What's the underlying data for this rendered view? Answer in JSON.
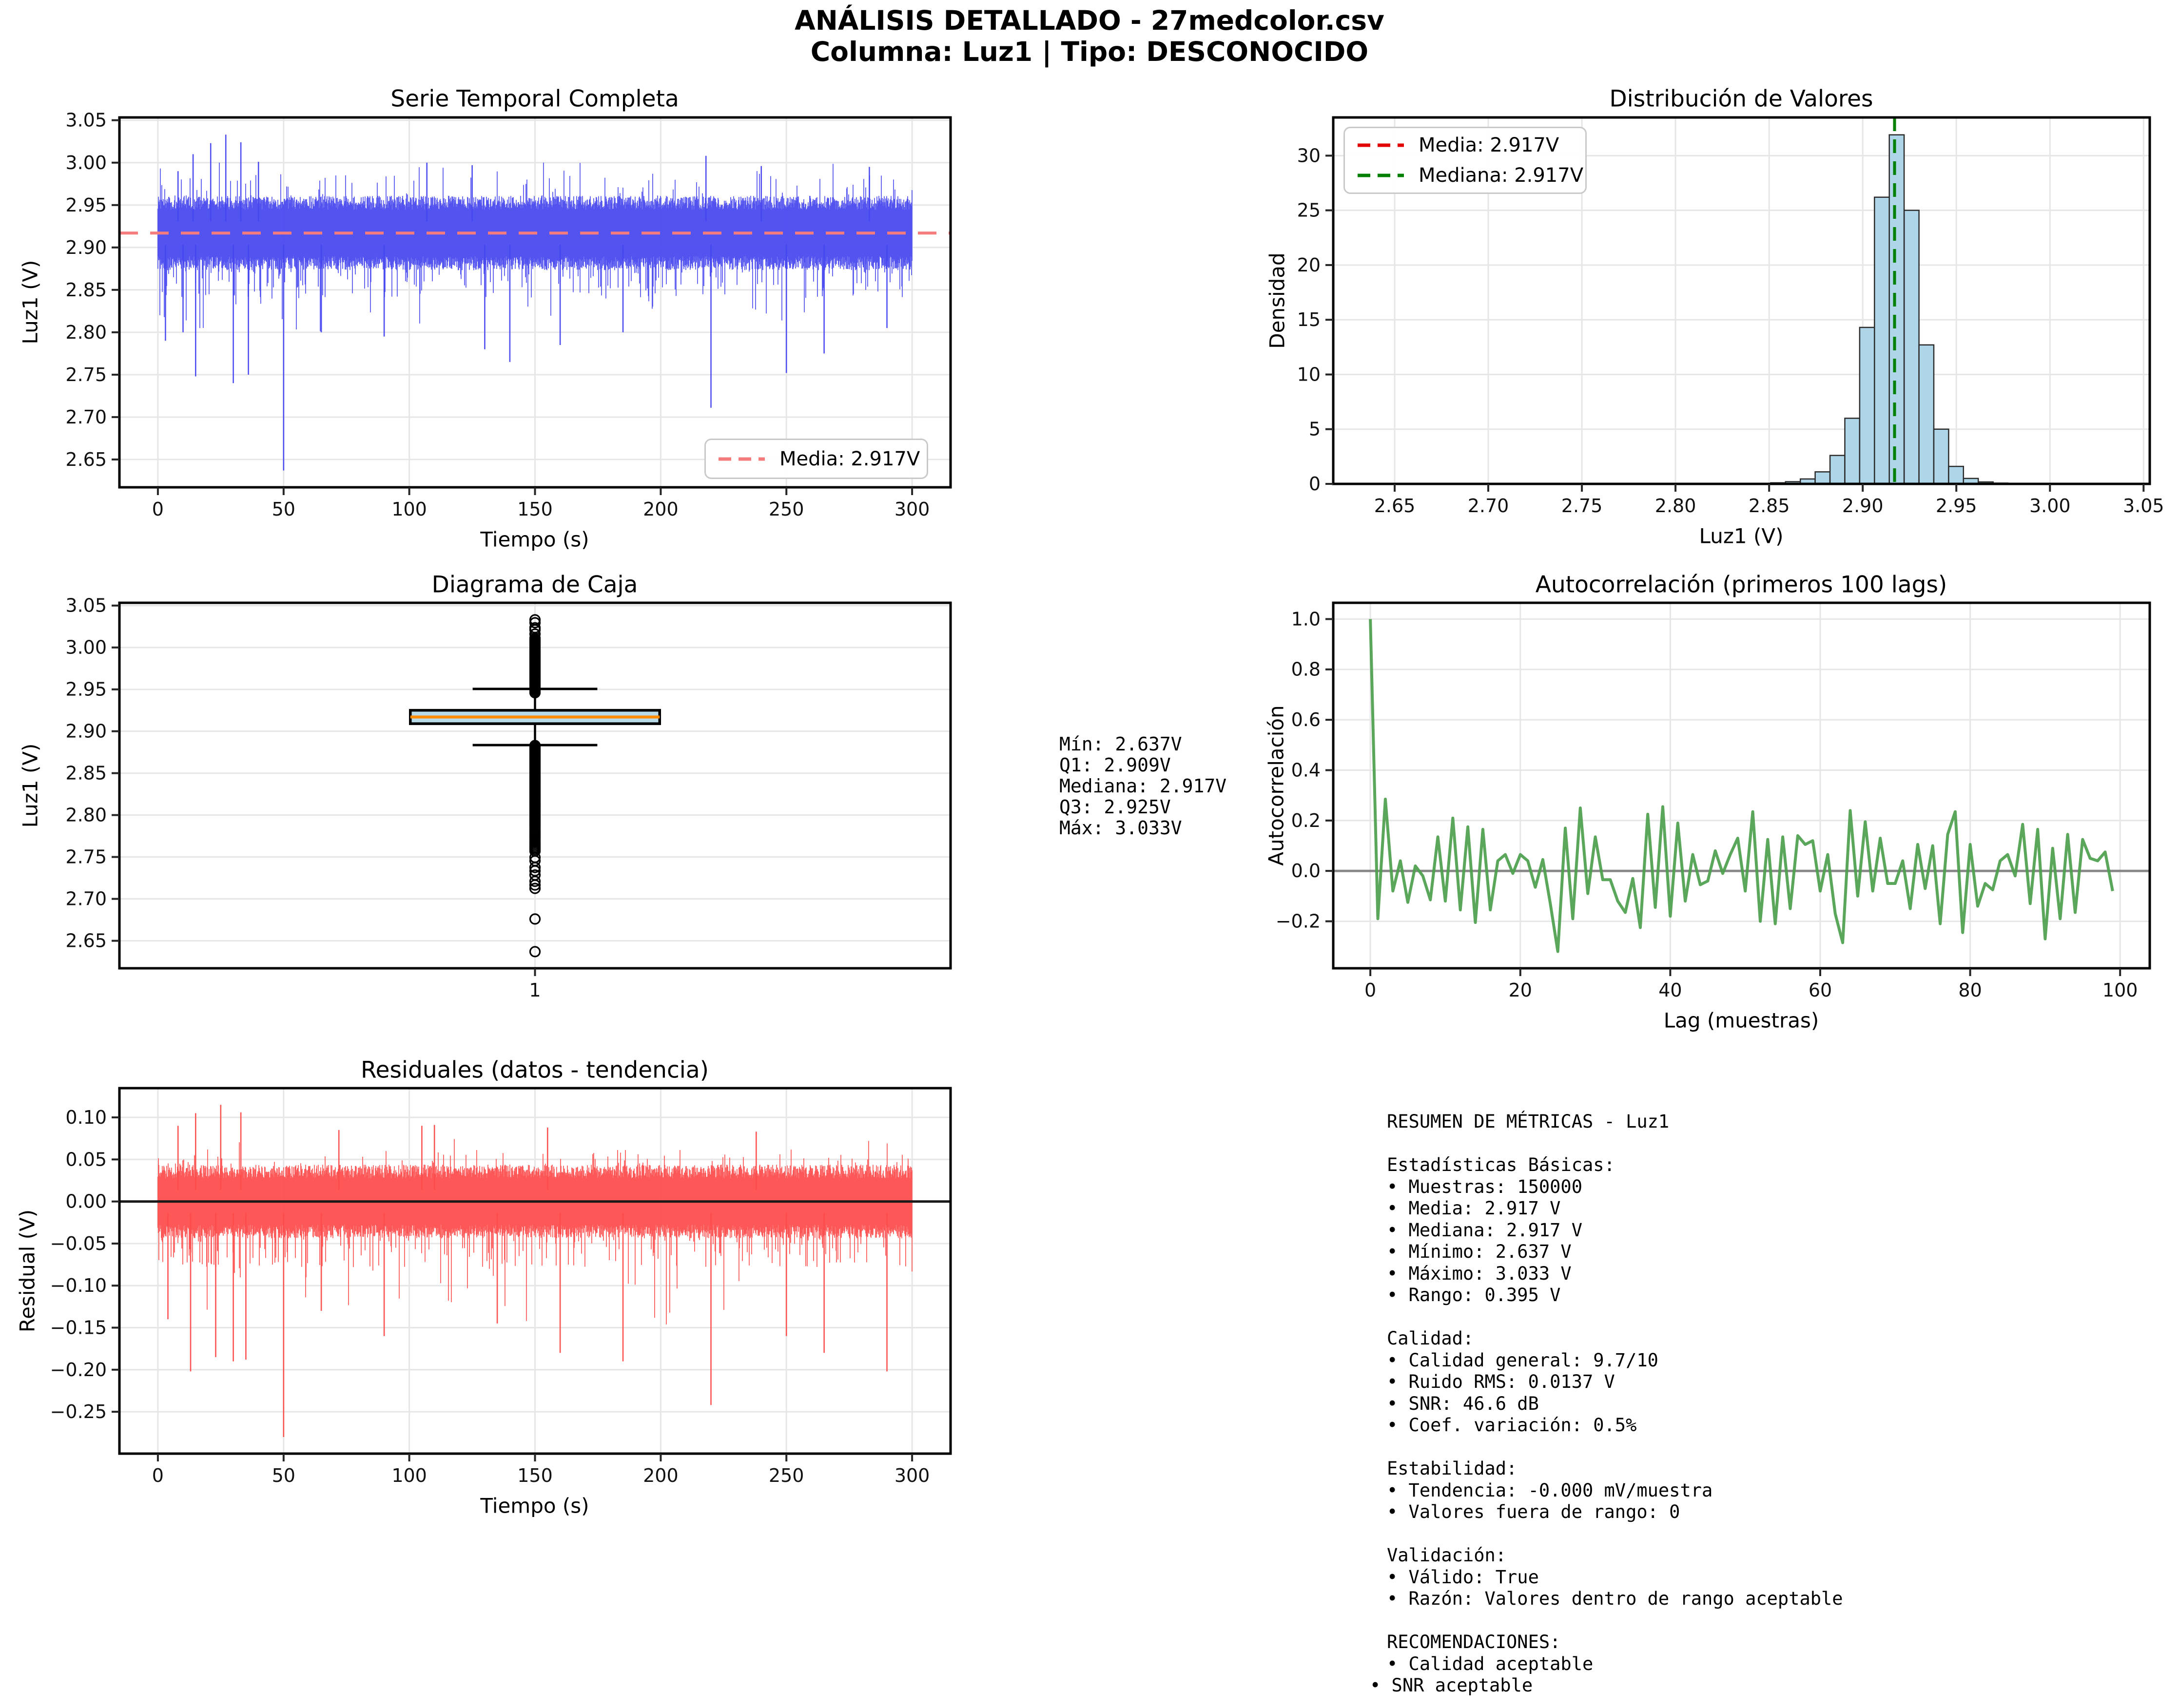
{
  "header": {
    "title_line1": "ANÁLISIS DETALLADO - 27medcolor.csv",
    "title_line2": "Columna: Luz1 | Tipo: DESCONOCIDO"
  },
  "stats_block": {
    "lines": [
      "Mín: 2.637V",
      "Q1: 2.909V",
      "Mediana: 2.917V",
      "Q3: 2.925V",
      "Máx: 3.033V"
    ]
  },
  "metrics_block": {
    "lines": [
      "RESUMEN DE MÉTRICAS - Luz1",
      "",
      "Estadísticas Básicas:",
      "• Muestras: 150000",
      "• Media: 2.917 V",
      "• Mediana: 2.917 V",
      "• Mínimo: 2.637 V",
      "• Máximo: 3.033 V",
      "• Rango: 0.395 V",
      "",
      "Calidad:",
      "• Calidad general: 9.7/10",
      "• Ruido RMS: 0.0137 V",
      "• SNR: 46.6 dB",
      "• Coef. variación: 0.5%",
      "",
      "Estabilidad:",
      "• Tendencia: -0.000 mV/muestra",
      "• Valores fuera de rango: 0",
      "",
      "Validación:",
      "• Válido: True",
      "• Razón: Valores dentro de rango aceptable",
      "",
      "RECOMENDACIONES:",
      "• Calidad aceptable",
      "• SNR aceptable"
    ]
  },
  "chart_data": {
    "timeseries": {
      "type": "line",
      "title": "Serie Temporal Completa",
      "xlabel": "Tiempo (s)",
      "ylabel": "Luz1 (V)",
      "line_color": "#4646ef",
      "xlim": [
        -15.3,
        315.3
      ],
      "ylim": [
        2.6172,
        3.0533
      ],
      "xtick_values": [
        0,
        50,
        100,
        150,
        200,
        250,
        300
      ],
      "xtick_labels": [
        "0",
        "50",
        "100",
        "150",
        "200",
        "250",
        "300"
      ],
      "ytick_values": [
        2.65,
        2.7,
        2.75,
        2.8,
        2.85,
        2.9,
        2.95,
        3.0,
        3.05
      ],
      "ytick_labels": [
        "2.65",
        "2.70",
        "2.75",
        "2.80",
        "2.85",
        "2.90",
        "2.95",
        "3.00",
        "3.05"
      ],
      "mean_line": {
        "value": 2.917,
        "color": "#f47c7c"
      },
      "legend_label": "Media: 2.917V",
      "signal": {
        "seed": 99713,
        "duration": 300,
        "mean": 2.917,
        "std": 0.0137,
        "core": [
          2.0,
          1.2
        ],
        "up_tiers": [
          {
            "rate": 0.006,
            "min": 0.072,
            "max": 0.088
          },
          {
            "rate": 0.05,
            "min": 0.04,
            "max": 0.07
          }
        ],
        "down_tiers": [
          {
            "rate": 0.012,
            "min": 0.078,
            "max": 0.118
          },
          {
            "rate": 0.09,
            "min": 0.045,
            "max": 0.078
          }
        ],
        "early_t": 60,
        "early_boost": 1.8,
        "spikes": [
          [
            50,
            2.637
          ],
          [
            220,
            2.711
          ],
          [
            27,
            3.033
          ],
          [
            21,
            3.023
          ],
          [
            33,
            3.024
          ],
          [
            14,
            3.01
          ],
          [
            40,
            3.001
          ],
          [
            8,
            2.99
          ],
          [
            107,
            3.0
          ],
          [
            125,
            2.997
          ],
          [
            218,
            3.008
          ],
          [
            240,
            2.996
          ],
          [
            283,
            2.995
          ],
          [
            3,
            2.79
          ],
          [
            10,
            2.8
          ],
          [
            15,
            2.748
          ],
          [
            30,
            2.74
          ],
          [
            36,
            2.75
          ],
          [
            65,
            2.8
          ],
          [
            90,
            2.795
          ],
          [
            130,
            2.78
          ],
          [
            140,
            2.765
          ],
          [
            160,
            2.785
          ],
          [
            185,
            2.8
          ],
          [
            250,
            2.752
          ],
          [
            265,
            2.775
          ],
          [
            290,
            2.805
          ]
        ]
      }
    },
    "histogram": {
      "type": "bar",
      "title": "Distribución de Valores",
      "xlabel": "Luz1 (V)",
      "ylabel": "Densidad",
      "bar_fill": "#aed6e8",
      "bar_edge": "#2b2b2b",
      "xlim": [
        2.6172,
        3.0533
      ],
      "ylim": [
        0,
        33.49
      ],
      "xtick_values": [
        2.65,
        2.7,
        2.75,
        2.8,
        2.85,
        2.9,
        2.95,
        3.0,
        3.05
      ],
      "xtick_labels": [
        "2.65",
        "2.70",
        "2.75",
        "2.80",
        "2.85",
        "2.90",
        "2.95",
        "3.00",
        "3.05"
      ],
      "ytick_values": [
        0,
        5,
        10,
        15,
        20,
        25,
        30
      ],
      "ytick_labels": [
        "0",
        "5",
        "10",
        "15",
        "20",
        "25",
        "30"
      ],
      "bin_start": 2.637,
      "bin_width": 0.00792,
      "bin_heights": [
        0.012,
        0,
        0,
        0,
        0,
        0.006,
        0,
        0,
        0,
        0,
        0,
        0,
        0.006,
        0,
        0,
        0,
        0,
        0,
        0.01,
        0,
        0,
        0,
        0.012,
        0,
        0.02,
        0.03,
        0.05,
        0.1,
        0.2,
        0.45,
        1.1,
        2.6,
        6.0,
        14.3,
        26.2,
        31.9,
        25.0,
        12.7,
        5.0,
        1.6,
        0.5,
        0.18,
        0.07,
        0.03,
        0.02,
        0.012,
        0.008,
        0.006,
        0.005,
        0.012
      ],
      "mean_line": {
        "value": 2.917,
        "color": "#e00000",
        "label": "Media: 2.917V"
      },
      "median_line": {
        "value": 2.917,
        "color": "#007f00",
        "label": "Mediana: 2.917V"
      }
    },
    "boxplot": {
      "type": "boxplot",
      "title": "Diagrama de Caja",
      "ylabel": "Luz1 (V)",
      "xlim": [
        0.5,
        1.5
      ],
      "ylim": [
        2.6172,
        3.0533
      ],
      "xtick_values": [
        1
      ],
      "xtick_labels": [
        "1"
      ],
      "ytick_values": [
        2.65,
        2.7,
        2.75,
        2.8,
        2.85,
        2.9,
        2.95,
        3.0,
        3.05
      ],
      "ytick_labels": [
        "2.65",
        "2.70",
        "2.75",
        "2.80",
        "2.85",
        "2.90",
        "2.95",
        "3.00",
        "3.05"
      ],
      "q1": 2.909,
      "median": 2.917,
      "q3": 2.925,
      "whisker_low": 2.8835,
      "whisker_high": 2.9505,
      "box_fill": "#b7d9e8",
      "median_color": "#ff8c00",
      "box_width": 0.15,
      "cap_width": 0.075,
      "outlier_ranges": [
        {
          "from": 2.883,
          "to": 2.787,
          "step": 0.0011
        },
        {
          "from": 2.785,
          "to": 2.757,
          "step": 0.002
        },
        {
          "from": 2.946,
          "to": 3.012,
          "step": 0.0013
        }
      ],
      "outlier_singles": [
        3.016,
        3.021,
        3.0235,
        3.0295,
        3.033,
        2.7495,
        2.7455,
        2.7375,
        2.7335,
        2.7285,
        2.721,
        2.7165,
        2.7125,
        2.676,
        2.637
      ]
    },
    "autocorr": {
      "type": "line",
      "title": "Autocorrelación (primeros 100 lags)",
      "xlabel": "Lag (muestras)",
      "ylabel": "Autocorrelación",
      "line_color": "#4c9e4c",
      "zero_line_color": "#888888",
      "xlim": [
        -4.95,
        103.95
      ],
      "ylim": [
        -0.3866,
        1.0646
      ],
      "xtick_values": [
        0,
        20,
        40,
        60,
        80,
        100
      ],
      "xtick_labels": [
        "0",
        "20",
        "40",
        "60",
        "80",
        "100"
      ],
      "ytick_values": [
        -0.2,
        0.0,
        0.2,
        0.4,
        0.6,
        0.8,
        1.0
      ],
      "ytick_labels": [
        "−0.2",
        "0.0",
        "0.2",
        "0.4",
        "0.6",
        "0.8",
        "1.0"
      ],
      "values": [
        1.0,
        -0.19,
        0.285,
        -0.08,
        0.04,
        -0.125,
        0.02,
        -0.02,
        -0.115,
        0.135,
        -0.12,
        0.21,
        -0.155,
        0.175,
        -0.205,
        0.165,
        -0.155,
        0.04,
        0.065,
        -0.01,
        0.065,
        0.04,
        -0.065,
        0.045,
        -0.13,
        -0.32,
        0.17,
        -0.19,
        0.25,
        -0.09,
        0.135,
        -0.035,
        -0.035,
        -0.12,
        -0.165,
        -0.03,
        -0.225,
        0.225,
        -0.145,
        0.255,
        -0.18,
        0.19,
        -0.12,
        0.065,
        -0.055,
        -0.04,
        0.08,
        -0.01,
        0.065,
        0.13,
        -0.08,
        0.235,
        -0.2,
        0.125,
        -0.21,
        0.135,
        -0.15,
        0.14,
        0.105,
        0.12,
        -0.08,
        0.065,
        -0.17,
        -0.285,
        0.24,
        -0.1,
        0.195,
        -0.08,
        0.13,
        -0.05,
        -0.05,
        0.04,
        -0.15,
        0.105,
        -0.07,
        0.1,
        -0.21,
        0.145,
        0.235,
        -0.245,
        0.105,
        -0.14,
        -0.05,
        -0.075,
        0.04,
        0.065,
        -0.02,
        0.185,
        -0.13,
        0.165,
        -0.27,
        0.09,
        -0.19,
        0.145,
        -0.165,
        0.125,
        0.05,
        0.04,
        0.075,
        -0.08
      ]
    },
    "residuals": {
      "type": "line",
      "title": "Residuales (datos - tendencia)",
      "xlabel": "Tiempo (s)",
      "ylabel": "Residual (V)",
      "line_color": "#fd4a4a",
      "zero_line_color": "#1a1a1a",
      "xlim": [
        -15.3,
        315.3
      ],
      "ylim": [
        -0.29975,
        0.13475
      ],
      "xtick_values": [
        0,
        50,
        100,
        150,
        200,
        250,
        300
      ],
      "xtick_labels": [
        "0",
        "50",
        "100",
        "150",
        "200",
        "250",
        "300"
      ],
      "ytick_values": [
        -0.25,
        -0.2,
        -0.15,
        -0.1,
        -0.05,
        0.0,
        0.05,
        0.1
      ],
      "ytick_labels": [
        "−0.25",
        "−0.20",
        "−0.15",
        "−0.10",
        "−0.05",
        "0.00",
        "0.05",
        "0.10"
      ],
      "signal": {
        "seed": 424242,
        "duration": 300,
        "mean": 0,
        "std": 0.0137,
        "core": [
          2.0,
          1.2
        ],
        "up_tiers": [
          {
            "rate": 0.006,
            "min": 0.06,
            "max": 0.092
          },
          {
            "rate": 0.05,
            "min": 0.04,
            "max": 0.062
          }
        ],
        "down_tiers": [
          {
            "rate": 0.014,
            "min": 0.075,
            "max": 0.148
          },
          {
            "rate": 0.1,
            "min": 0.045,
            "max": 0.078
          }
        ],
        "early_t": 60,
        "early_boost": 1.6,
        "spikes": [
          [
            50,
            -0.28
          ],
          [
            220,
            -0.242
          ],
          [
            25,
            0.115
          ],
          [
            13,
            -0.202
          ],
          [
            290,
            -0.202
          ],
          [
            15,
            0.105
          ],
          [
            33,
            0.106
          ],
          [
            8,
            0.09
          ],
          [
            110,
            0.091
          ],
          [
            23,
            -0.185
          ],
          [
            30,
            -0.19
          ],
          [
            35,
            -0.188
          ],
          [
            4,
            -0.14
          ],
          [
            65,
            -0.13
          ],
          [
            90,
            -0.16
          ],
          [
            135,
            -0.145
          ],
          [
            160,
            -0.18
          ],
          [
            185,
            -0.19
          ],
          [
            250,
            -0.16
          ],
          [
            265,
            -0.18
          ],
          [
            238,
            0.083
          ],
          [
            155,
            0.088
          ],
          [
            72,
            0.085
          ],
          [
            105,
            0.09
          ]
        ]
      }
    }
  }
}
